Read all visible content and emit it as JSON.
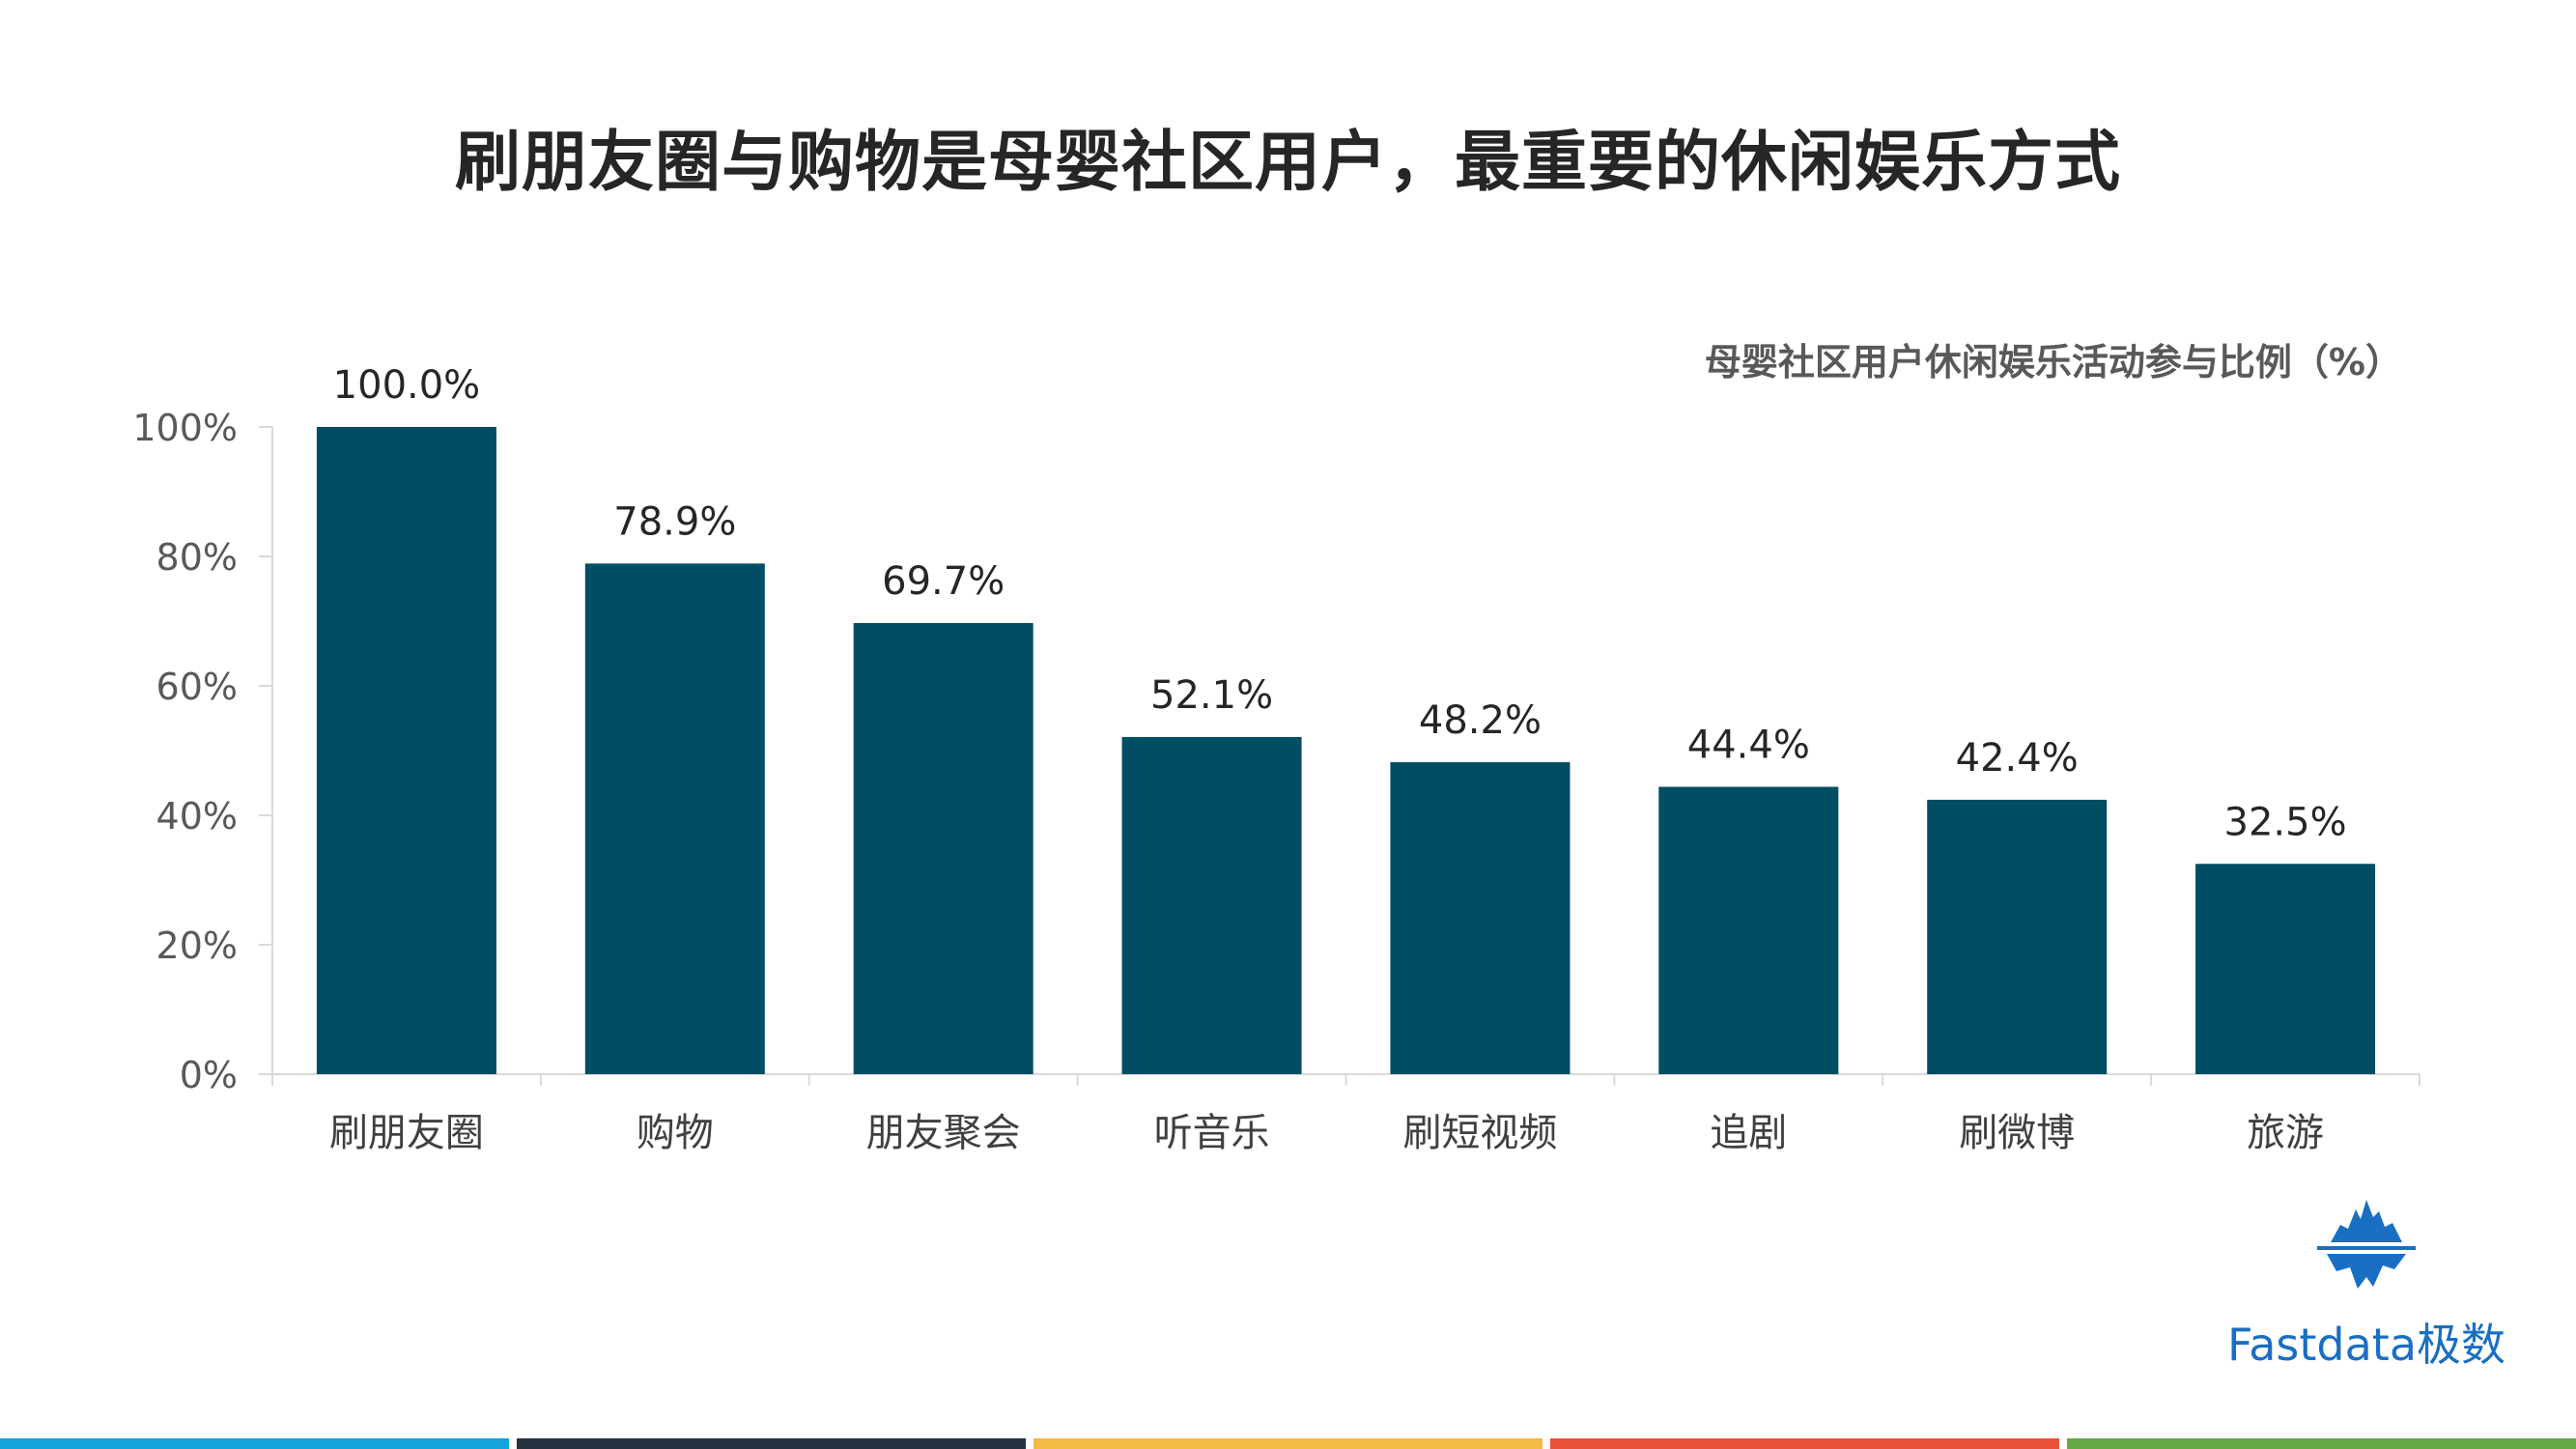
{
  "page": {
    "title": "刷朋友圈与购物是母婴社区用户，最重要的休闲娱乐方式"
  },
  "chart_data": {
    "type": "bar",
    "title": "母婴社区用户休闲娱乐活动参与比例（%）",
    "xlabel": "",
    "ylabel": "",
    "categories": [
      "刷朋友圈",
      "购物",
      "朋友聚会",
      "听音乐",
      "刷短视频",
      "追剧",
      "刷微博",
      "旅游"
    ],
    "values": [
      100.0,
      78.9,
      69.7,
      52.1,
      48.2,
      44.4,
      42.4,
      32.5
    ],
    "data_labels": [
      "100.0%",
      "78.9%",
      "69.7%",
      "52.1%",
      "48.2%",
      "44.4%",
      "42.4%",
      "32.5%"
    ],
    "ylim": [
      0,
      100
    ],
    "yticks": [
      0,
      20,
      40,
      60,
      80,
      100
    ],
    "ytick_labels": [
      "0%",
      "20%",
      "40%",
      "60%",
      "80%",
      "100%"
    ],
    "grid": false,
    "legend": "none",
    "bar_color": "#014d63"
  },
  "logo": {
    "text": "Fastdata极数",
    "icon": "iceberg-logo-icon",
    "color": "#1a6fc2"
  },
  "footer": {
    "strip_colors": [
      "#15a3dc",
      "#25313e",
      "#f5b945",
      "#e8503a",
      "#67a846"
    ]
  }
}
